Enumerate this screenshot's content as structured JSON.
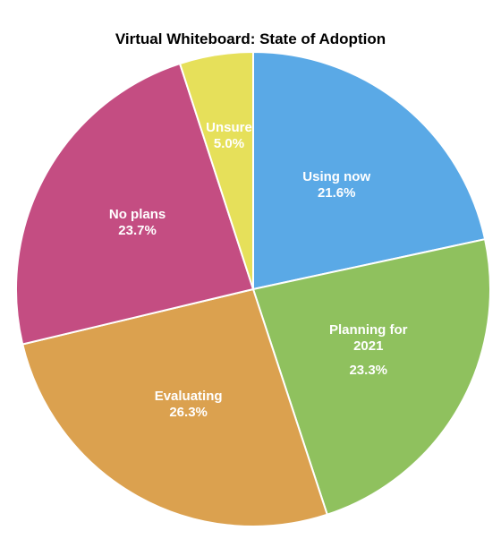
{
  "chart_data": {
    "type": "pie",
    "title": "Virtual Whiteboard: State of Adoption",
    "categories": [
      "Using now",
      "Planning for 2021",
      "Evaluating",
      "No plans",
      "Unsure"
    ],
    "values": [
      21.6,
      23.3,
      26.3,
      23.7,
      5.0
    ],
    "value_labels": [
      "21.6%",
      "23.3%",
      "26.3%",
      "23.7%",
      "5.0%"
    ],
    "colors": [
      "#5aa9e6",
      "#8fc15e",
      "#dba14f",
      "#c44d82",
      "#e6e05a"
    ]
  }
}
